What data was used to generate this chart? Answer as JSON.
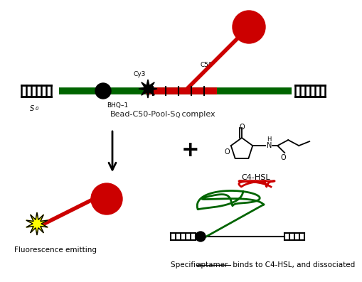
{
  "bg_color": "#ffffff",
  "panel1_label": "Bead-C50-Pool-S",
  "panel1_label_sub": "Q",
  "panel1_label_suffix": " complex",
  "panel_bottom_left_label": "Fluorescence emitting",
  "panel_bottom_right_label": "Specific aptamer binds to C4-HSL, and dissociated",
  "c4hsl_label": "C4-HSL",
  "cy3_label": "Cy3",
  "c50_label": "C50",
  "bhq1_label": "BHQ–1",
  "sa_label": "S",
  "sa_sub": "0",
  "red": "#cc0000",
  "green": "#006400",
  "black": "#000000",
  "yellow": "#ffff00",
  "text_color": "#222222"
}
